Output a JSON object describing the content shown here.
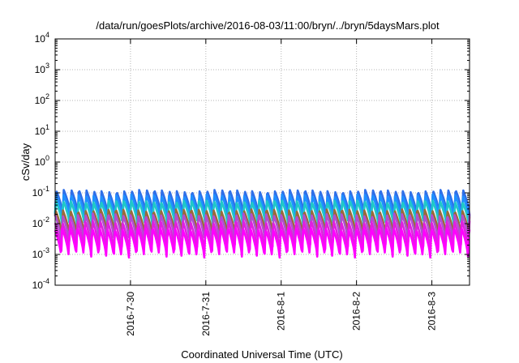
{
  "chart_data": {
    "type": "line",
    "title": "/data/run/goesPlots/archive/2016-08-03/11:00/bryn/../bryn/5daysMars.plot",
    "xlabel": "Coordinated Universal Time (UTC)",
    "ylabel": "cSv/day",
    "yscale": "log",
    "ylim": [
      0.0001,
      10000
    ],
    "y_ticks": [
      {
        "base": "10",
        "exp": "4"
      },
      {
        "base": "10",
        "exp": "3"
      },
      {
        "base": "10",
        "exp": "2"
      },
      {
        "base": "10",
        "exp": "1"
      },
      {
        "base": "10",
        "exp": "0"
      },
      {
        "base": "10",
        "exp": "-1"
      },
      {
        "base": "10",
        "exp": "-2"
      },
      {
        "base": "10",
        "exp": "-3"
      },
      {
        "base": "10",
        "exp": "-4"
      }
    ],
    "xlim": [
      "2016-07-29 00:00",
      "2016-08-03 12:00"
    ],
    "x_ticks": [
      "2016-7-30",
      "2016-7-31",
      "2016-8-1",
      "2016-8-2",
      "2016-8-3"
    ],
    "grid": true,
    "cycle_hours": 2.4,
    "series": [
      {
        "color": "#2f6fe8",
        "peak": 0.12,
        "trough": 0.018
      },
      {
        "color": "#1e90ff",
        "peak": 0.085,
        "trough": 0.012
      },
      {
        "color": "#1fc8c8",
        "peak": 0.055,
        "trough": 0.008
      },
      {
        "color": "#9a6a3a",
        "peak": 0.028,
        "trough": 0.004
      },
      {
        "color": "#b04fd0",
        "peak": 0.02,
        "trough": 0.0025
      },
      {
        "color": "#e020e0",
        "peak": 0.012,
        "trough": 0.0012
      },
      {
        "color": "#ff00ff",
        "peak": 0.007,
        "trough": 0.0008
      }
    ]
  }
}
